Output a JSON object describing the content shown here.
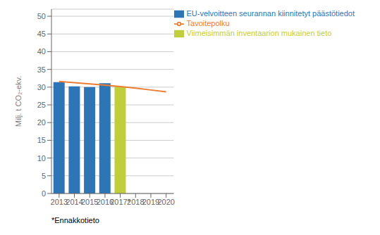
{
  "chart_data": {
    "type": "bar",
    "ylabel": "Milj. t CO₂-ekv.",
    "categories": [
      "2013",
      "2014",
      "2015",
      "2016",
      "2017*",
      "2018",
      "2019",
      "2020"
    ],
    "series": [
      {
        "name": "EU-velvoitteen seurannan kiinnitetyt päästötiedot",
        "type": "bar",
        "color": "#2E75B6",
        "values": [
          31.4,
          30.2,
          30.0,
          31.1,
          null,
          null,
          null,
          null
        ]
      },
      {
        "name": "Viimeisimmän inventaarion mukainen tieto",
        "type": "bar",
        "color": "#BFCE3A",
        "values": [
          null,
          null,
          null,
          null,
          30.1,
          null,
          null,
          null
        ]
      },
      {
        "name": "Tavoitepolku",
        "type": "line",
        "color": "#ED7D31",
        "values": [
          31.6,
          31.25,
          30.9,
          30.55,
          30.15,
          29.7,
          29.2,
          28.7
        ]
      }
    ],
    "stacked": true,
    "ylim": [
      0,
      52
    ],
    "yticks": [
      0,
      5,
      10,
      15,
      20,
      25,
      30,
      35,
      40,
      45,
      50
    ],
    "grid": true,
    "legend": "upper right",
    "annotations": [
      "*Ennakkotieto"
    ]
  }
}
